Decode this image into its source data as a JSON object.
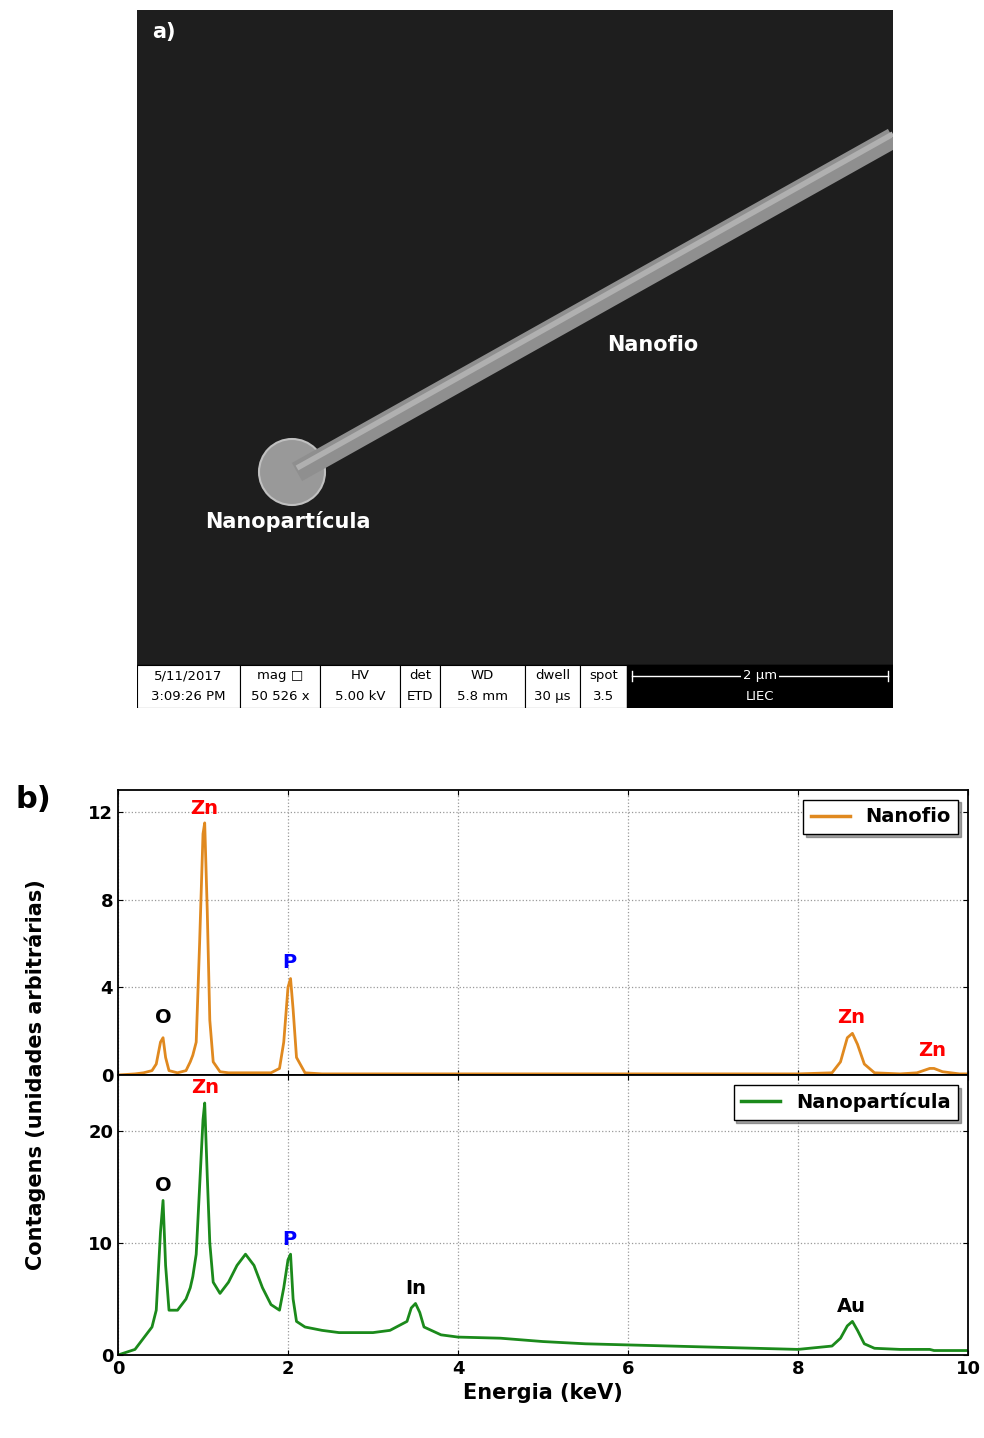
{
  "sem_image": {
    "panel_label": "a)",
    "labels": {
      "wire": "Nanofio",
      "particle": "Nanopartícula"
    },
    "info_bar": [
      {
        "header": "5/11/2017",
        "value": "3:09:26 PM"
      },
      {
        "header": "mag □",
        "value": "50 526 x"
      },
      {
        "header": "HV",
        "value": "5.00 kV"
      },
      {
        "header": "det",
        "value": "ETD"
      },
      {
        "header": "WD",
        "value": "5.8 mm"
      },
      {
        "header": "dwell",
        "value": "30 µs"
      },
      {
        "header": "spot",
        "value": "3.5"
      }
    ],
    "scale_bar": {
      "label": "2 µm",
      "lab": "LIEC"
    }
  },
  "panel_b": {
    "label": "b)",
    "ylabel": "Contagens (unidades arbitrárias)"
  },
  "chart_data": [
    {
      "type": "line",
      "x": [
        0,
        0.2,
        0.3,
        0.4,
        0.45,
        0.5,
        0.53,
        0.56,
        0.6,
        0.7,
        0.8,
        0.85,
        0.88,
        0.92,
        0.96,
        1.0,
        1.02,
        1.05,
        1.08,
        1.12,
        1.2,
        1.3,
        1.4,
        1.5,
        1.6,
        1.7,
        1.8,
        1.9,
        1.95,
        2.0,
        2.03,
        2.06,
        2.1,
        2.2,
        2.4,
        2.6,
        2.8,
        3.0,
        3.2,
        3.4,
        3.45,
        3.5,
        3.55,
        3.6,
        3.8,
        4.0,
        4.5,
        5.0,
        5.5,
        6.0,
        6.5,
        7.0,
        7.5,
        8.0,
        8.4,
        8.5,
        8.58,
        8.64,
        8.7,
        8.78,
        8.9,
        9.2,
        9.4,
        9.55,
        9.6,
        9.7,
        9.9,
        10.0
      ],
      "series": [
        {
          "name": "Nanofio",
          "color": "#e0891f",
          "values": [
            0,
            0.05,
            0.1,
            0.2,
            0.5,
            1.5,
            1.7,
            0.8,
            0.2,
            0.1,
            0.2,
            0.6,
            0.9,
            1.5,
            6.0,
            11.0,
            11.5,
            7.5,
            2.5,
            0.6,
            0.15,
            0.1,
            0.1,
            0.1,
            0.1,
            0.1,
            0.1,
            0.3,
            1.5,
            4.0,
            4.4,
            3.0,
            0.8,
            0.1,
            0.05,
            0.05,
            0.05,
            0.05,
            0.05,
            0.05,
            0.05,
            0.05,
            0.05,
            0.05,
            0.05,
            0.05,
            0.05,
            0.05,
            0.05,
            0.05,
            0.05,
            0.05,
            0.05,
            0.05,
            0.1,
            0.6,
            1.7,
            1.9,
            1.4,
            0.5,
            0.1,
            0.05,
            0.1,
            0.3,
            0.3,
            0.15,
            0.05,
            0.05
          ]
        }
      ],
      "xlim": [
        0,
        10
      ],
      "xticks": [
        0,
        2,
        4,
        6,
        8,
        10
      ],
      "ylim": [
        0,
        13
      ],
      "yticks": [
        0,
        4,
        8,
        12
      ],
      "grid": true,
      "legend": "upper right",
      "tick_labels": "y",
      "annotations": [
        {
          "text": "O",
          "x": 0.53,
          "y": 2.2,
          "color": "black"
        },
        {
          "text": "Zn",
          "x": 1.01,
          "y": 11.7,
          "color": "red"
        },
        {
          "text": "P",
          "x": 2.02,
          "y": 4.7,
          "color": "blue"
        },
        {
          "text": "Zn",
          "x": 8.63,
          "y": 2.2,
          "color": "red"
        },
        {
          "text": "Zn",
          "x": 9.58,
          "y": 0.7,
          "color": "red"
        }
      ]
    },
    {
      "type": "line",
      "x": [
        0,
        0.2,
        0.3,
        0.4,
        0.45,
        0.5,
        0.53,
        0.56,
        0.6,
        0.7,
        0.8,
        0.85,
        0.88,
        0.92,
        0.96,
        1.0,
        1.02,
        1.05,
        1.08,
        1.12,
        1.2,
        1.3,
        1.4,
        1.5,
        1.6,
        1.7,
        1.8,
        1.9,
        1.95,
        2.0,
        2.03,
        2.06,
        2.1,
        2.2,
        2.4,
        2.6,
        2.8,
        3.0,
        3.2,
        3.4,
        3.45,
        3.5,
        3.55,
        3.6,
        3.8,
        4.0,
        4.5,
        5.0,
        5.5,
        6.0,
        6.5,
        7.0,
        7.5,
        8.0,
        8.4,
        8.5,
        8.58,
        8.64,
        8.7,
        8.78,
        8.9,
        9.2,
        9.4,
        9.55,
        9.6,
        9.7,
        9.9,
        10.0
      ],
      "series": [
        {
          "name": "Nanopartícula",
          "color": "#1b8a1b",
          "values": [
            0,
            0.5,
            1.5,
            2.5,
            4.0,
            11.0,
            13.8,
            8.0,
            4.0,
            4.0,
            5.0,
            6.0,
            7.0,
            9.0,
            15.0,
            21.0,
            22.5,
            16.0,
            10.0,
            6.5,
            5.5,
            6.5,
            8.0,
            9.0,
            8.0,
            6.0,
            4.5,
            4.0,
            6.0,
            8.5,
            9.0,
            5.0,
            3.0,
            2.5,
            2.2,
            2.0,
            2.0,
            2.0,
            2.2,
            3.0,
            4.2,
            4.6,
            3.8,
            2.5,
            1.8,
            1.6,
            1.5,
            1.2,
            1.0,
            0.9,
            0.8,
            0.7,
            0.6,
            0.5,
            0.8,
            1.5,
            2.6,
            3.0,
            2.2,
            1.0,
            0.6,
            0.5,
            0.5,
            0.5,
            0.4,
            0.4,
            0.4,
            0.4
          ]
        }
      ],
      "xlim": [
        0,
        10
      ],
      "xticks": [
        0,
        2,
        4,
        6,
        8,
        10
      ],
      "ylim": [
        0,
        25
      ],
      "yticks": [
        0,
        10,
        20
      ],
      "grid": true,
      "legend": "upper right",
      "xlabel": "Energia (keV)",
      "annotations": [
        {
          "text": "O",
          "x": 0.53,
          "y": 14.3,
          "color": "black"
        },
        {
          "text": "Zn",
          "x": 1.02,
          "y": 23.0,
          "color": "red"
        },
        {
          "text": "P",
          "x": 2.02,
          "y": 9.5,
          "color": "blue"
        },
        {
          "text": "In",
          "x": 3.5,
          "y": 5.1,
          "color": "black"
        },
        {
          "text": "Au",
          "x": 8.63,
          "y": 3.5,
          "color": "black"
        }
      ]
    }
  ]
}
